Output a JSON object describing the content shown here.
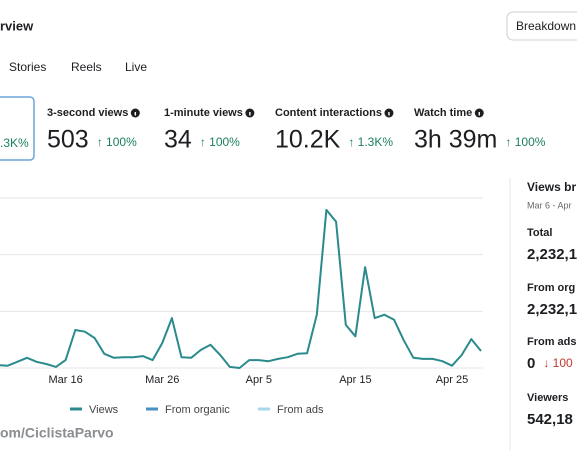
{
  "header": {
    "title": "rview",
    "button": "Breakdown:"
  },
  "tabs": [
    "Stories",
    "Reels",
    "Live"
  ],
  "metrics": [
    {
      "change": ".3K%"
    },
    {
      "label": "3-second views",
      "value": "503",
      "change": "↑ 100%"
    },
    {
      "label": "1-minute views",
      "value": "34",
      "change": "↑ 100%"
    },
    {
      "label": "Content interactions",
      "value": "10.2K",
      "change": "↑ 1.3K%"
    },
    {
      "label": "Watch time",
      "value": "3h 39m",
      "change": "↑ 100%"
    }
  ],
  "chart_data": {
    "type": "line",
    "categories": [
      null,
      null,
      null,
      null,
      null,
      null,
      null,
      "Mar 16",
      null,
      null,
      null,
      null,
      null,
      null,
      null,
      null,
      null,
      "Mar 26",
      null,
      null,
      null,
      null,
      null,
      null,
      null,
      null,
      null,
      "Apr 5",
      null,
      null,
      null,
      null,
      null,
      null,
      null,
      null,
      null,
      "Apr 15",
      null,
      null,
      null,
      null,
      null,
      null,
      null,
      null,
      null,
      "Apr 25",
      null,
      null,
      null
    ],
    "series": [
      {
        "name": "Views",
        "color": "#2a8a8c",
        "values": [
          5,
          4,
          11,
          18,
          11,
          7,
          2,
          14,
          67,
          64,
          53,
          25,
          18,
          19,
          19,
          21,
          14,
          44,
          88,
          19,
          18,
          32,
          41,
          23,
          2,
          0,
          14,
          14,
          12,
          16,
          19,
          25,
          26,
          94,
          279,
          258,
          76,
          56,
          178,
          88,
          94,
          85,
          49,
          18,
          16,
          16,
          12,
          4,
          23,
          51,
          30
        ]
      },
      {
        "name": "From organic",
        "color": "#4a90c2"
      },
      {
        "name": "From ads",
        "color": "#a8d8ea"
      }
    ],
    "ylim": [
      0,
      300
    ],
    "grid": true
  },
  "side_panel": {
    "title": "Views br",
    "date": "Mar 6 - Apr",
    "rows": [
      {
        "label": "Total",
        "value": "2,232,1"
      },
      {
        "label": "From org",
        "value": "2,232,1"
      },
      {
        "label": "From ads",
        "value": "0",
        "change": "↓ 100"
      },
      {
        "label": "Viewers",
        "value": "542,18"
      }
    ]
  },
  "watermark": "om/CiclistaParvo"
}
